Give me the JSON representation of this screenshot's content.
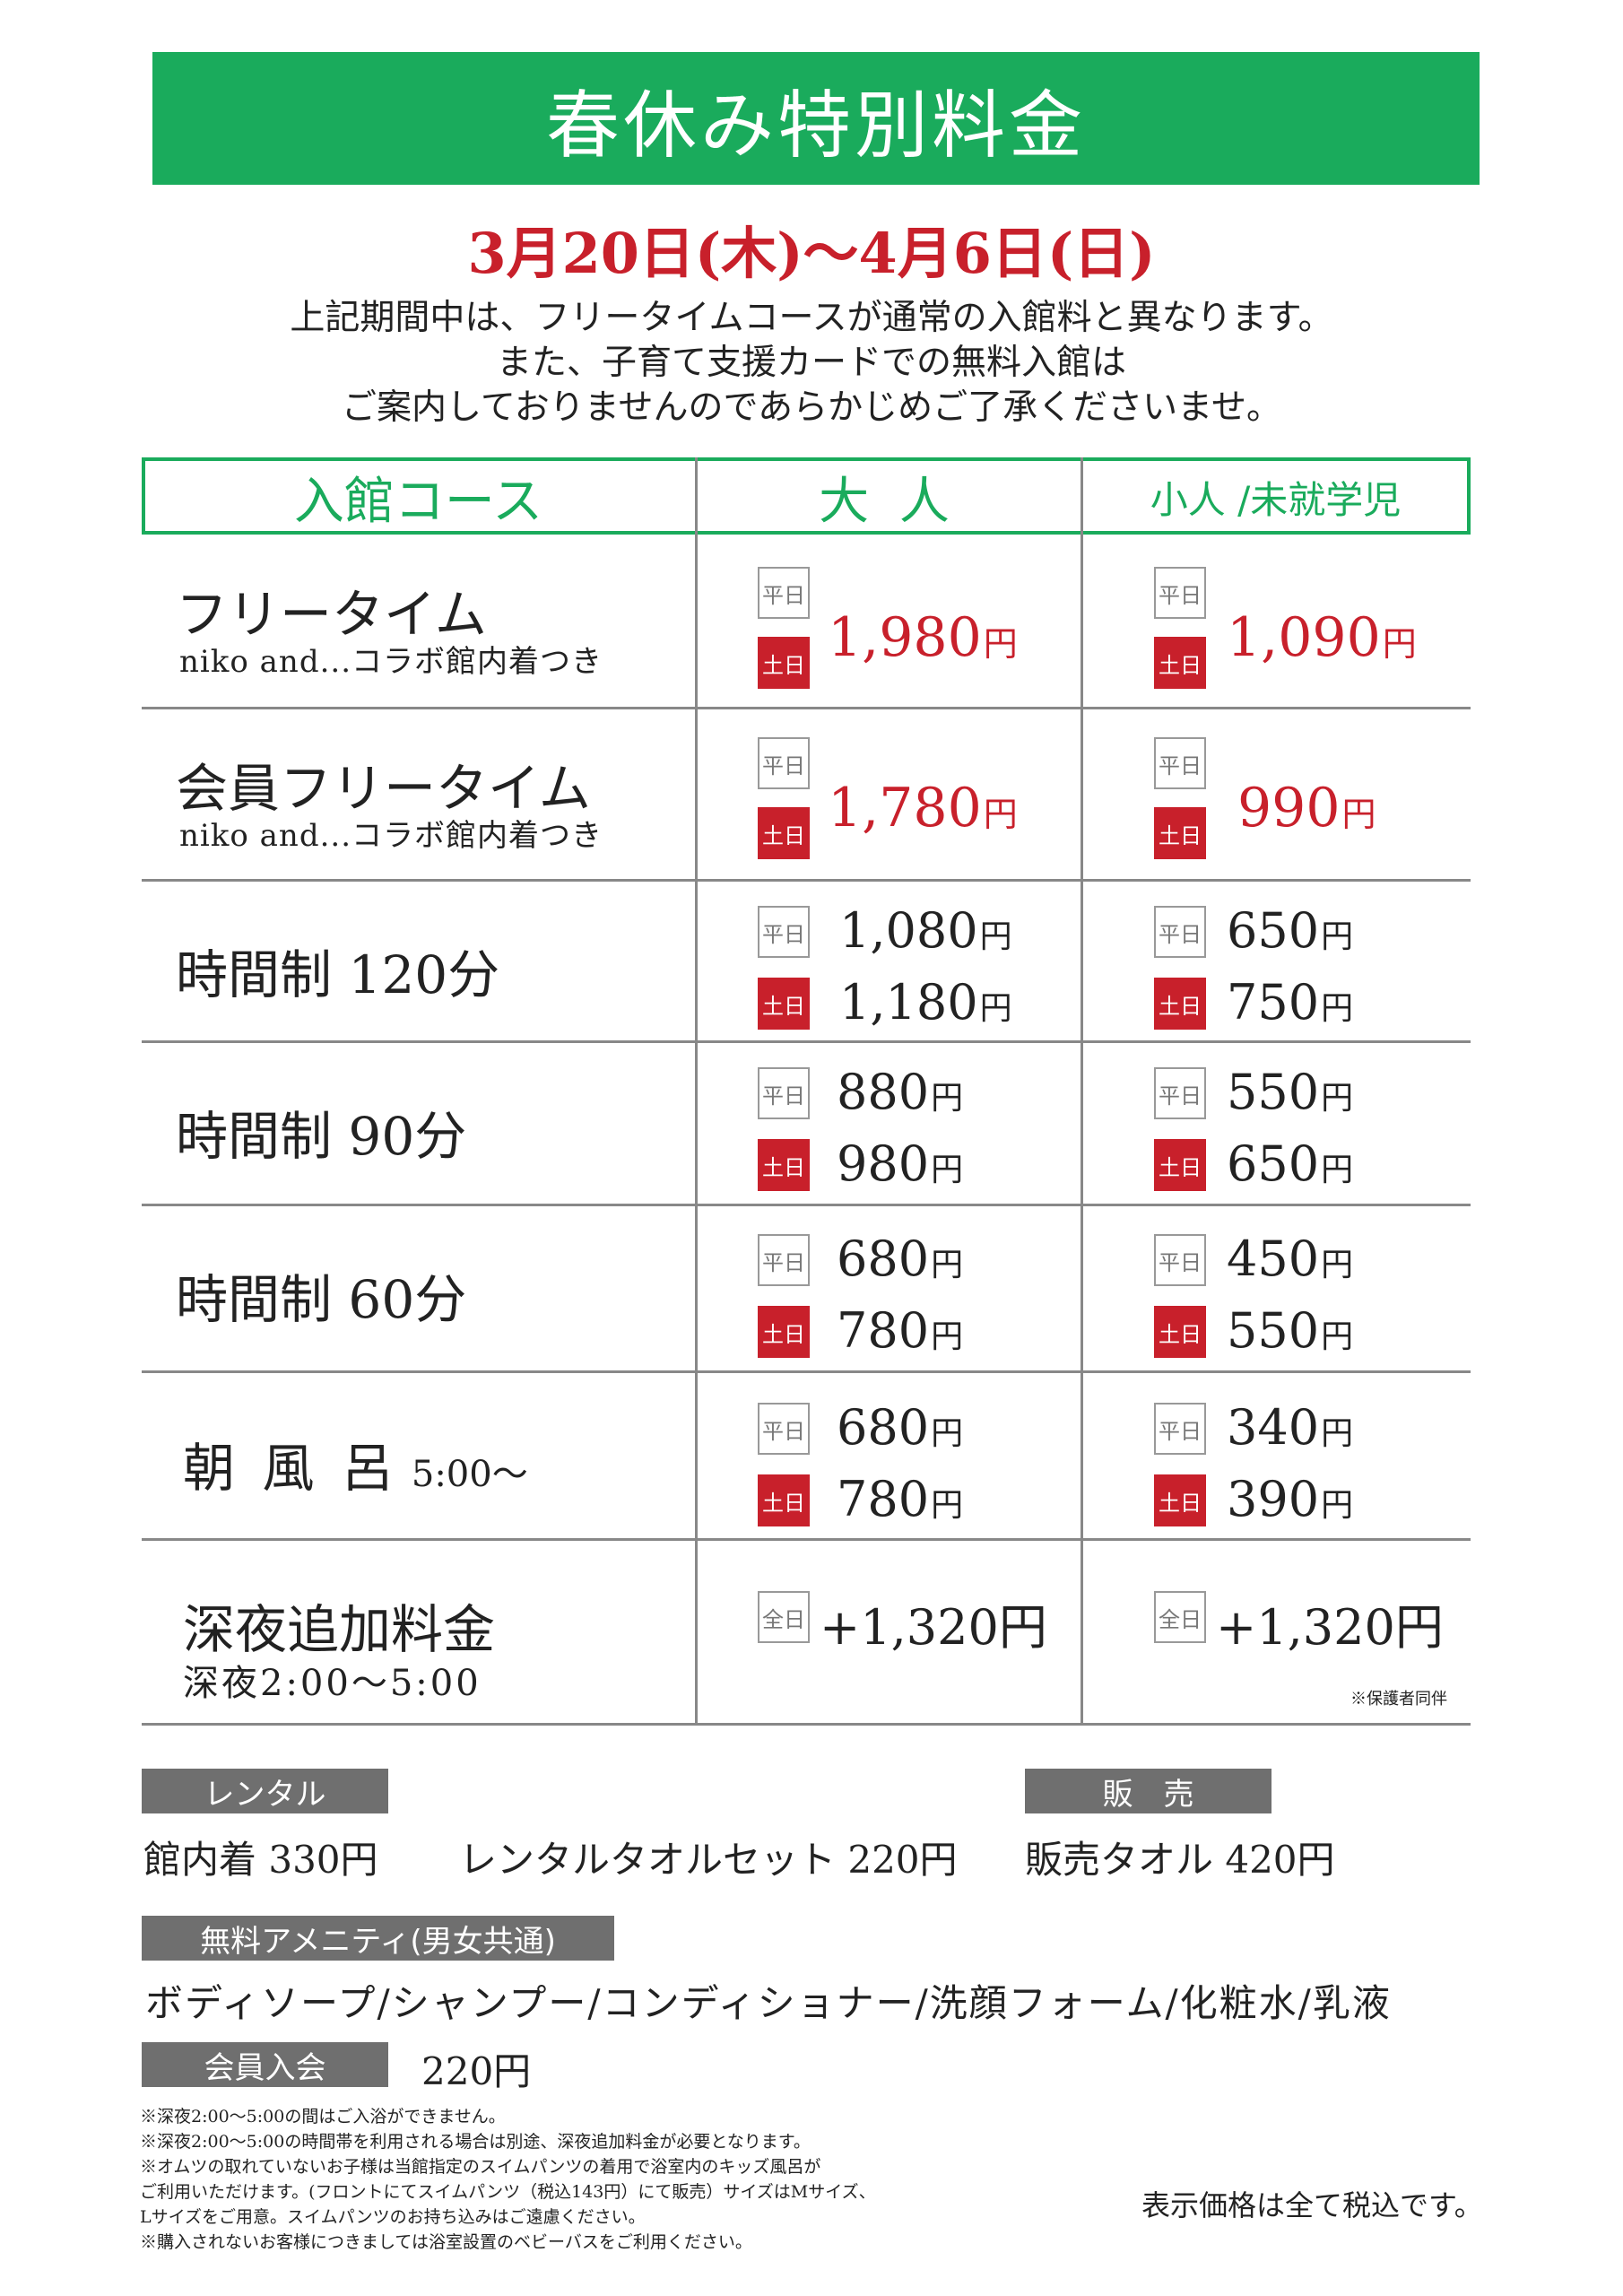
{
  "title": "春休み特別料金",
  "period": "3月20日(木)～4月6日(日)",
  "intro_lines": [
    "上記期間中は、フリータイムコースが通常の入館料と異なります。",
    "また、子育て支援カードでの無料入館は",
    "ご案内しておりませんのであらかじめご了承くださいませ。"
  ],
  "table": {
    "headers": {
      "course": "入館コース",
      "adult": "大 人",
      "child": "小人 /未就学児"
    },
    "tag_weekday": "平日",
    "tag_weekend": "土日",
    "tag_all": "全日",
    "yen": "円",
    "rows": [
      {
        "name": "フリータイム",
        "sub": "niko and...コラボ館内着つき",
        "adult": "1,980",
        "child": "1,090"
      },
      {
        "name": "会員フリータイム",
        "sub": "niko and...コラボ館内着つき",
        "adult": "1,780",
        "child": "990"
      },
      {
        "name": "時間制 120分",
        "adult_wd": "1,080",
        "adult_we": "1,180",
        "child_wd": "650",
        "child_we": "750"
      },
      {
        "name": "時間制 90分",
        "adult_wd": "880",
        "adult_we": "980",
        "child_wd": "550",
        "child_we": "650"
      },
      {
        "name": "時間制 60分",
        "adult_wd": "680",
        "adult_we": "780",
        "child_wd": "450",
        "child_we": "550"
      },
      {
        "name": "朝 風 呂",
        "time": "5:00～",
        "adult_wd": "680",
        "adult_we": "780",
        "child_wd": "340",
        "child_we": "390"
      },
      {
        "name": "深夜追加料金",
        "sub": "深夜2:00～5:00",
        "adult": "+1,320円",
        "child": "+1,320円",
        "note": "※保護者同伴"
      }
    ]
  },
  "rental": {
    "label": "レンタル",
    "item1": "館内着  330円",
    "item2": "レンタルタオルセット 220円"
  },
  "sales": {
    "label": "販　売",
    "item1": "販売タオル 420円"
  },
  "amenity": {
    "label": "無料アメニティ(男女共通)",
    "items": "ボディソープ/シャンプー/コンディショナー/洗顔フォーム/化粧水/乳液"
  },
  "membership": {
    "label": "会員入会",
    "price": "220円"
  },
  "notes": [
    "※深夜2:00～5:00の間はご入浴ができません。",
    "※深夜2:00～5:00の時間帯を利用される場合は別途、深夜追加料金が必要となります。",
    "※オムツの取れていないお子様は当館指定のスイムパンツの着用で浴室内のキッズ風呂が",
    "ご利用いただけます。(フロントにてスイムパンツ（税込143円）にて販売）サイズはMサイズ、",
    "Lサイズをご用意。スイムパンツのお持ち込みはご遠慮ください。",
    "※購入されないお客様につきましては浴室設置のベビーバスをご利用ください。"
  ],
  "tax_note": "表示価格は全て税込です。",
  "colors": {
    "green": "#1aab5c",
    "red": "#c8202b",
    "gray_label": "#6f6f6f"
  }
}
